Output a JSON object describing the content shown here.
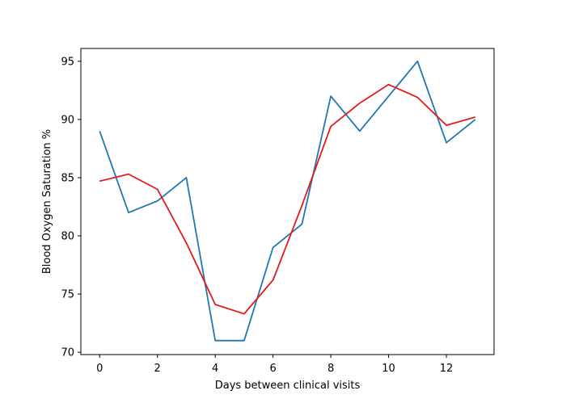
{
  "chart_data": {
    "type": "line",
    "title": "",
    "xlabel": "Days between clinical visits",
    "ylabel": "Blood Oxygen Saturation %",
    "xlim": [
      -0.65,
      13.65
    ],
    "ylim": [
      69.8,
      96.1
    ],
    "xticks": [
      0,
      2,
      4,
      6,
      8,
      10,
      12
    ],
    "yticks": [
      70,
      75,
      80,
      85,
      90,
      95
    ],
    "grid": false,
    "legend": "none",
    "x": [
      0,
      1,
      2,
      3,
      4,
      5,
      6,
      7,
      8,
      9,
      10,
      11,
      12,
      13
    ],
    "series": [
      {
        "color": "#1f77b4",
        "values": [
          89,
          82,
          83,
          85,
          71,
          71,
          79,
          81,
          92,
          89,
          92,
          95,
          88,
          90
        ]
      },
      {
        "color": "#e31a1c",
        "values": [
          84.7,
          85.3,
          84.0,
          79.4,
          74.1,
          73.3,
          76.2,
          82.6,
          89.4,
          91.4,
          93.0,
          91.9,
          89.5,
          90.2
        ]
      }
    ]
  }
}
